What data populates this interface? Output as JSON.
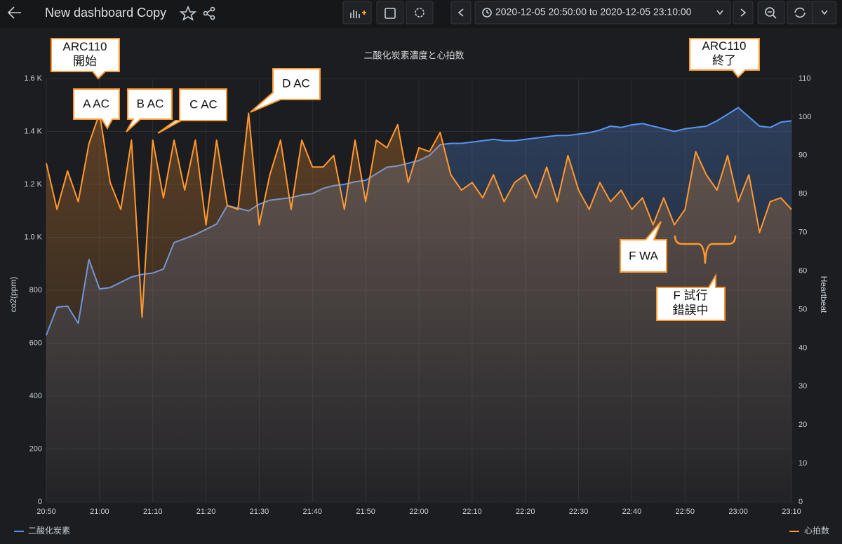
{
  "toolbar": {
    "title": "New dashboard Copy",
    "time_range": "2020-12-05 20:50:00 to 2020-12-05 23:10:00"
  },
  "chart_data": {
    "type": "line",
    "title": "二酸化炭素濃度と心拍数",
    "y_label": "co2(ppm)",
    "y2_label": "Heartbeat",
    "grid": true,
    "xlim": [
      "20:50",
      "23:10"
    ],
    "xticks": [
      "20:50",
      "21:00",
      "21:10",
      "21:20",
      "21:30",
      "21:40",
      "21:50",
      "22:00",
      "22:10",
      "22:20",
      "22:30",
      "22:40",
      "22:50",
      "23:00",
      "23:10"
    ],
    "ylim": [
      0,
      1600
    ],
    "yticks": [
      0,
      200,
      400,
      600,
      800,
      {
        "value": 1000,
        "label": "1.0 K"
      },
      {
        "value": 1200,
        "label": "1.2 K"
      },
      {
        "value": 1400,
        "label": "1.4 K"
      },
      {
        "value": 1600,
        "label": "1.6 K"
      }
    ],
    "y2lim": [
      0,
      110
    ],
    "y2ticks": [
      0,
      10,
      20,
      30,
      40,
      50,
      60,
      70,
      80,
      90,
      100,
      110
    ],
    "x": [
      "20:50",
      "20:52",
      "20:54",
      "20:56",
      "20:58",
      "21:00",
      "21:02",
      "21:04",
      "21:06",
      "21:08",
      "21:10",
      "21:12",
      "21:14",
      "21:16",
      "21:18",
      "21:20",
      "21:22",
      "21:24",
      "21:26",
      "21:28",
      "21:30",
      "21:32",
      "21:34",
      "21:36",
      "21:38",
      "21:40",
      "21:42",
      "21:44",
      "21:46",
      "21:48",
      "21:50",
      "21:52",
      "21:54",
      "21:56",
      "21:58",
      "22:00",
      "22:02",
      "22:04",
      "22:06",
      "22:08",
      "22:10",
      "22:12",
      "22:14",
      "22:16",
      "22:18",
      "22:20",
      "22:22",
      "22:24",
      "22:26",
      "22:28",
      "22:30",
      "22:32",
      "22:34",
      "22:36",
      "22:38",
      "22:40",
      "22:42",
      "22:44",
      "22:46",
      "22:48",
      "22:50",
      "22:52",
      "22:54",
      "22:56",
      "22:58",
      "23:00",
      "23:02",
      "23:04",
      "23:06",
      "23:08",
      "23:10"
    ],
    "series": [
      {
        "name": "二酸化炭素",
        "color": "#5794f2",
        "values": [
          630,
          736,
          740,
          675,
          916,
          805,
          810,
          830,
          850,
          860,
          865,
          880,
          980,
          995,
          1010,
          1030,
          1050,
          1120,
          1110,
          1100,
          1125,
          1140,
          1145,
          1150,
          1160,
          1165,
          1185,
          1195,
          1200,
          1210,
          1215,
          1240,
          1265,
          1270,
          1280,
          1290,
          1310,
          1350,
          1355,
          1355,
          1360,
          1365,
          1370,
          1365,
          1365,
          1370,
          1375,
          1380,
          1385,
          1385,
          1390,
          1395,
          1405,
          1420,
          1415,
          1425,
          1430,
          1420,
          1410,
          1400,
          1410,
          1415,
          1420,
          1440,
          1465,
          1490,
          1455,
          1420,
          1415,
          1435,
          1440
        ]
      },
      {
        "name": "心拍数",
        "color": "#ff9830",
        "axis": "y2",
        "values": [
          88,
          76,
          86,
          78,
          93,
          101,
          83,
          76,
          94,
          48,
          94,
          79,
          94,
          81,
          94,
          72,
          94,
          77,
          76,
          101,
          72,
          85,
          94,
          76,
          94,
          87,
          87,
          90,
          76,
          94,
          78,
          94,
          92,
          98,
          83,
          92,
          91,
          96,
          85,
          81,
          83,
          79,
          85,
          78,
          83,
          85,
          79,
          87,
          78,
          90,
          81,
          76,
          83,
          78,
          81,
          76,
          79,
          72,
          79,
          72,
          76,
          91,
          85,
          81,
          90,
          78,
          85,
          70,
          78,
          79,
          76
        ]
      }
    ],
    "legend": "bottom",
    "annotations": [
      [
        "ARC110",
        "開始"
      ],
      [
        "A AC"
      ],
      [
        "B AC"
      ],
      [
        "C AC"
      ],
      [
        "D AC"
      ],
      [
        "ARC110",
        "終了"
      ],
      [
        "F WA"
      ],
      [
        "F 試行",
        "錯誤中"
      ]
    ]
  }
}
